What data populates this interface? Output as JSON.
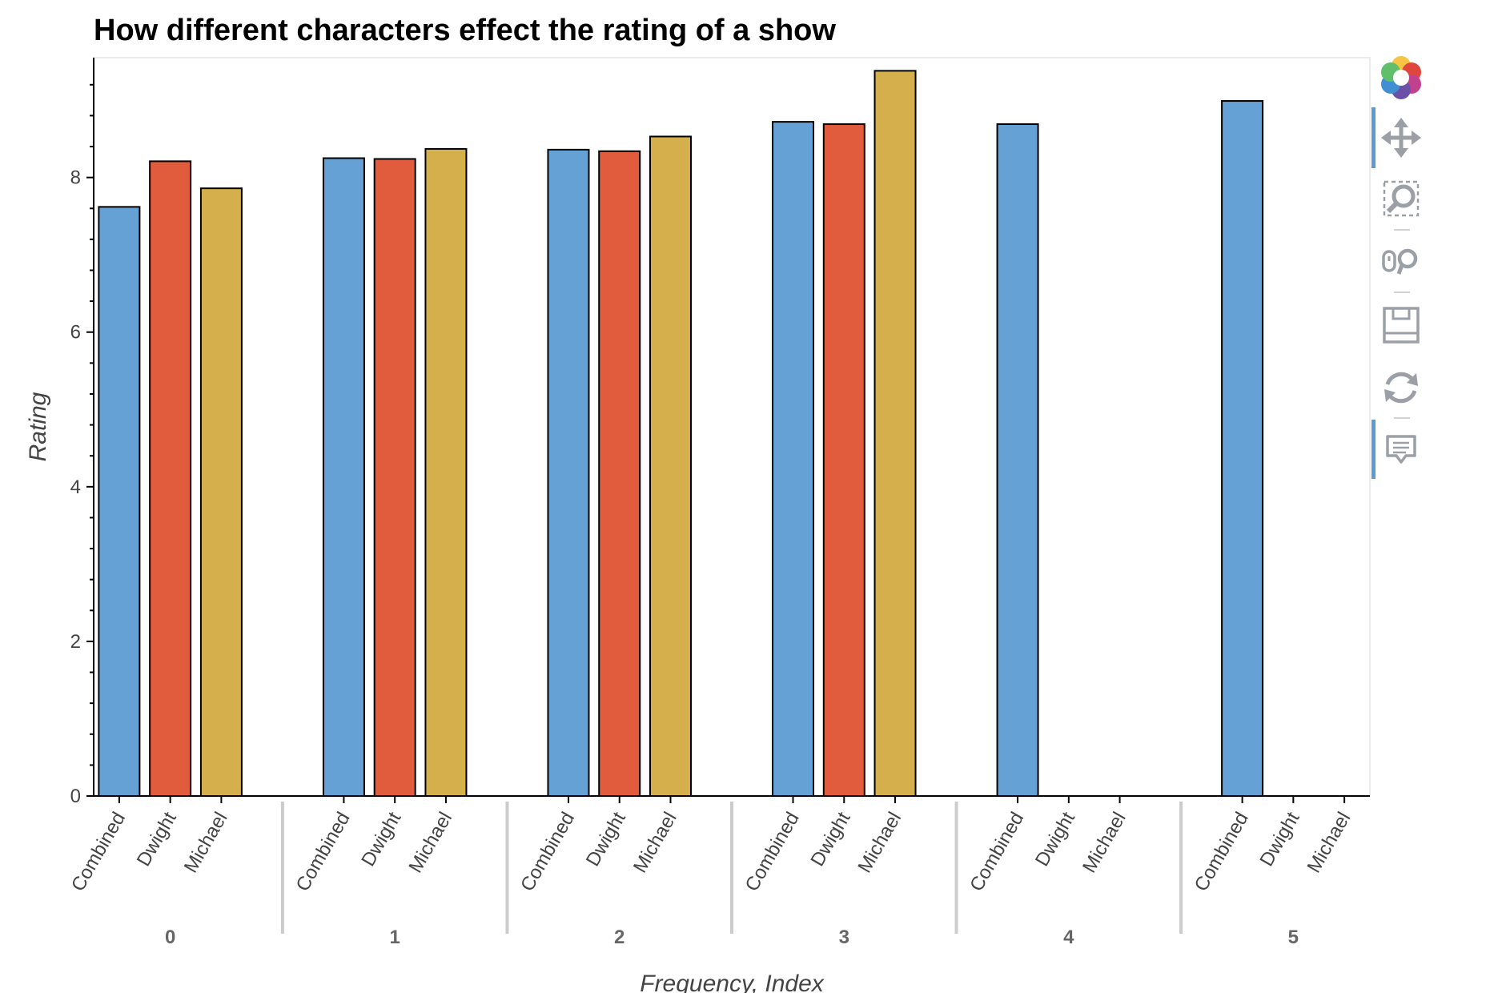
{
  "chart_data": {
    "type": "bar",
    "title": "How different characters effect the rating of a show",
    "xlabel": "Frequency, Index",
    "ylabel": "Rating",
    "ylim": [
      0,
      9.55
    ],
    "yticks": [
      0,
      2,
      4,
      6,
      8
    ],
    "grid": false,
    "groups": [
      "0",
      "1",
      "2",
      "3",
      "4",
      "5"
    ],
    "subcategories": [
      "Combined",
      "Dwight",
      "Michael"
    ],
    "series": [
      {
        "name": "Combined",
        "color": "#66a1d6",
        "values": [
          7.62,
          8.25,
          8.36,
          8.72,
          8.69,
          8.99
        ]
      },
      {
        "name": "Dwight",
        "color": "#e05c3c",
        "values": [
          8.21,
          8.24,
          8.34,
          8.69,
          0,
          0
        ]
      },
      {
        "name": "Michael",
        "color": "#d6af4d",
        "values": [
          7.86,
          8.37,
          8.53,
          9.38,
          0,
          0
        ]
      }
    ]
  },
  "toolbar": {
    "logo": "bokeh-logo-icon",
    "tools": [
      {
        "name": "pan-tool",
        "icon": "move-icon",
        "active": true
      },
      {
        "name": "box-zoom-tool",
        "icon": "box-zoom-icon",
        "active": false
      },
      {
        "name": "wheel-zoom-tool",
        "icon": "wheel-zoom-icon",
        "active": false
      },
      {
        "name": "save-tool",
        "icon": "save-icon",
        "active": false
      },
      {
        "name": "reset-tool",
        "icon": "reset-icon",
        "active": false
      },
      {
        "name": "hover-tool",
        "icon": "hover-icon",
        "active": true
      }
    ],
    "active_color": "#5b9bd5"
  }
}
